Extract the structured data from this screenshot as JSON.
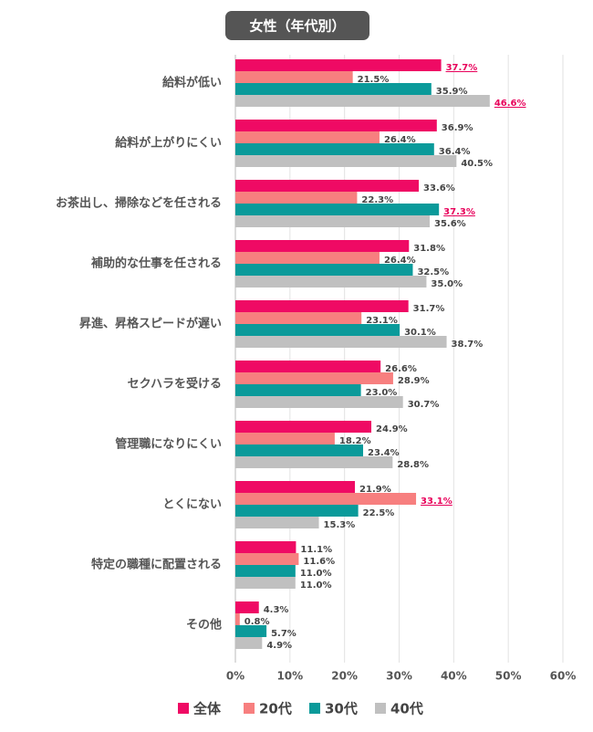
{
  "chart_data": {
    "type": "bar",
    "orientation": "horizontal",
    "title": "女性（年代別）",
    "categories": [
      "給料が低い",
      "給料が上がりにくい",
      "お茶出し、掃除などを任される",
      "補助的な仕事を任される",
      "昇進、昇格スピードが遅い",
      "セクハラを受ける",
      "管理職になりにくい",
      "とくにない",
      "特定の職種に配置される",
      "その他"
    ],
    "series": [
      {
        "name": "全体",
        "color": "#ef0a64",
        "values": [
          37.7,
          36.9,
          33.6,
          31.8,
          31.7,
          26.6,
          24.9,
          21.9,
          11.1,
          4.3
        ],
        "value_labels": [
          "37.7%",
          "36.9%",
          "33.6%",
          "31.8%",
          "31.7%",
          "26.6%",
          "24.9%",
          "21.9%",
          "11.1%",
          "4.3%"
        ],
        "highlighted": [
          true,
          false,
          false,
          false,
          false,
          false,
          false,
          false,
          false,
          false
        ]
      },
      {
        "name": "20代",
        "color": "#f77f7f",
        "values": [
          21.5,
          26.4,
          22.3,
          26.4,
          23.1,
          28.9,
          18.2,
          33.1,
          11.6,
          0.8
        ],
        "value_labels": [
          "21.5%",
          "26.4%",
          "22.3%",
          "26.4%",
          "23.1%",
          "28.9%",
          "18.2%",
          "33.1%",
          "11.6%",
          "0.8%"
        ],
        "highlighted": [
          false,
          false,
          false,
          false,
          false,
          false,
          false,
          true,
          false,
          false
        ]
      },
      {
        "name": "30代",
        "color": "#0a9a9a",
        "values": [
          35.9,
          36.4,
          37.3,
          32.5,
          30.1,
          23.0,
          23.4,
          22.5,
          11.0,
          5.7
        ],
        "value_labels": [
          "35.9%",
          "36.4%",
          "37.3%",
          "32.5%",
          "30.1%",
          "23.0%",
          "23.4%",
          "22.5%",
          "11.0%",
          "5.7%"
        ],
        "highlighted": [
          false,
          false,
          true,
          false,
          false,
          false,
          false,
          false,
          false,
          false
        ]
      },
      {
        "name": "40代",
        "color": "#c0c0c0",
        "values": [
          46.6,
          40.5,
          35.6,
          35.0,
          38.7,
          30.7,
          28.8,
          15.3,
          11.0,
          4.9
        ],
        "value_labels": [
          "46.6%",
          "40.5%",
          "35.6%",
          "35.0%",
          "38.7%",
          "30.7%",
          "28.8%",
          "15.3%",
          "11.0%",
          "4.9%"
        ],
        "highlighted": [
          true,
          false,
          false,
          false,
          false,
          false,
          false,
          false,
          false,
          false
        ]
      }
    ],
    "xlim": [
      0,
      60
    ],
    "xticks": [
      {
        "value": 0,
        "label": "0%"
      },
      {
        "value": 10,
        "label": "10%"
      },
      {
        "value": 20,
        "label": "20%"
      },
      {
        "value": 30,
        "label": "30%"
      },
      {
        "value": 40,
        "label": "40%"
      },
      {
        "value": 50,
        "label": "50%"
      },
      {
        "value": 60,
        "label": "60%"
      }
    ],
    "grid": true,
    "legend": "bottom"
  }
}
